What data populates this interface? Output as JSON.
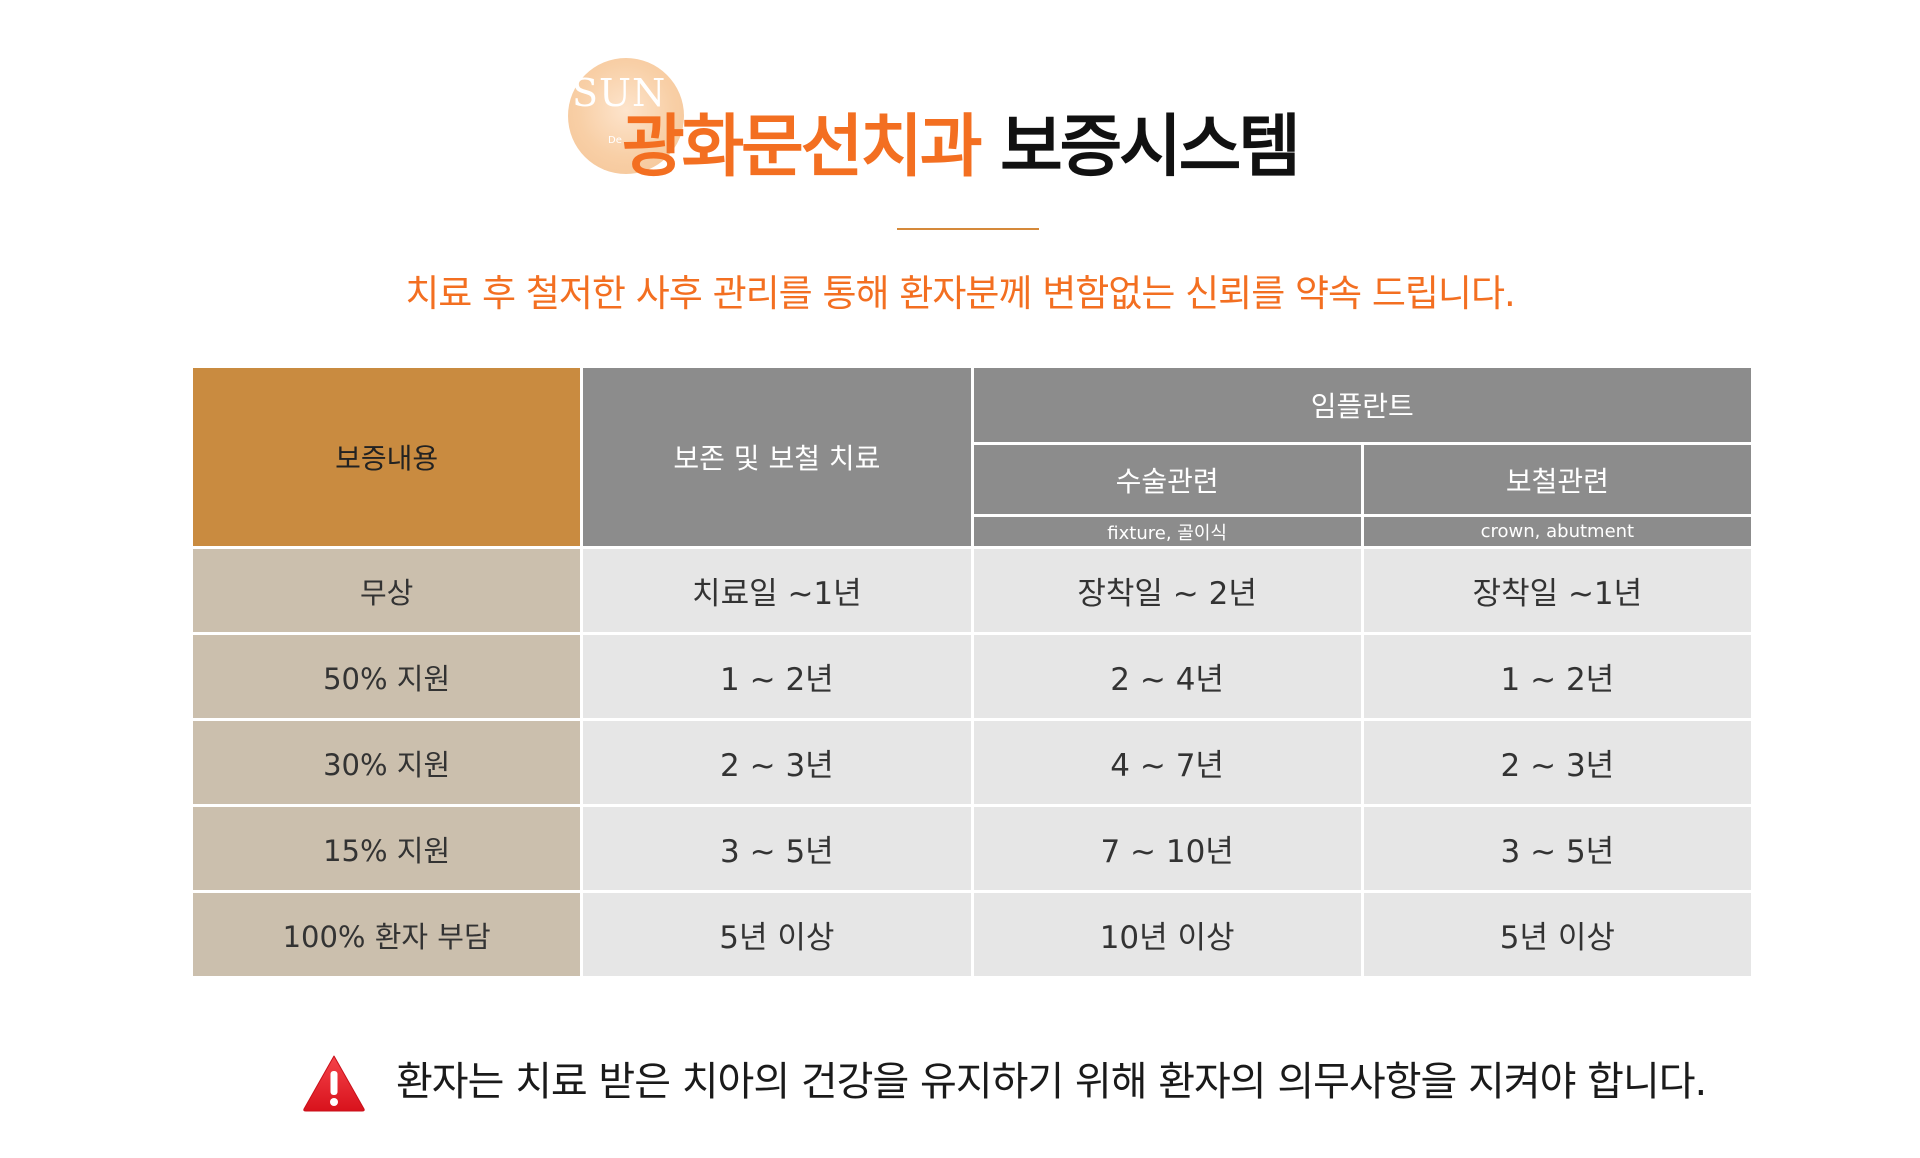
{
  "logo": {
    "text": "SUN",
    "sub": "De"
  },
  "header": {
    "title_highlight": "광화문선치과",
    "title_rest": "보증시스템",
    "subtitle": "치료 후 철저한 사후 관리를 통해 환자분께 변함없는 신뢰를 약속 드립니다."
  },
  "table": {
    "header_label": "보증내용",
    "col_conservative": "보존 및 보철 치료",
    "col_implant": "임플란트",
    "col_surgery": "수술관련",
    "col_prosthetic": "보철관련",
    "sub_surgery": "fixture, 골이식",
    "sub_prosthetic": "crown, abutment",
    "rows": [
      {
        "label": "무상",
        "conservative": "치료일 ~1년",
        "surgery": "장착일 ~ 2년",
        "prosthetic": "장착일 ~1년"
      },
      {
        "label": "50% 지원",
        "conservative": "1 ~ 2년",
        "surgery": "2 ~ 4년",
        "prosthetic": "1 ~ 2년"
      },
      {
        "label": "30% 지원",
        "conservative": "2 ~ 3년",
        "surgery": "4 ~ 7년",
        "prosthetic": "2 ~ 3년"
      },
      {
        "label": "15% 지원",
        "conservative": "3 ~ 5년",
        "surgery": "7 ~ 10년",
        "prosthetic": "3 ~ 5년"
      },
      {
        "label": "100% 환자 부담",
        "conservative": "5년 이상",
        "surgery": "10년 이상",
        "prosthetic": "5년 이상"
      }
    ]
  },
  "notice": {
    "icon": "warning-icon",
    "text": "환자는 치료 받은 치아의 건강을 유지하기 위해 환자의 의무사항을 지켜야 합니다."
  },
  "colors": {
    "accent": "#f36f21",
    "header_label_bg": "#c98b40",
    "header_bg": "#8c8c8c",
    "row_label_bg": "#cbbfad",
    "cell_bg": "#e6e6e6",
    "warning_red": "#e8202a"
  }
}
